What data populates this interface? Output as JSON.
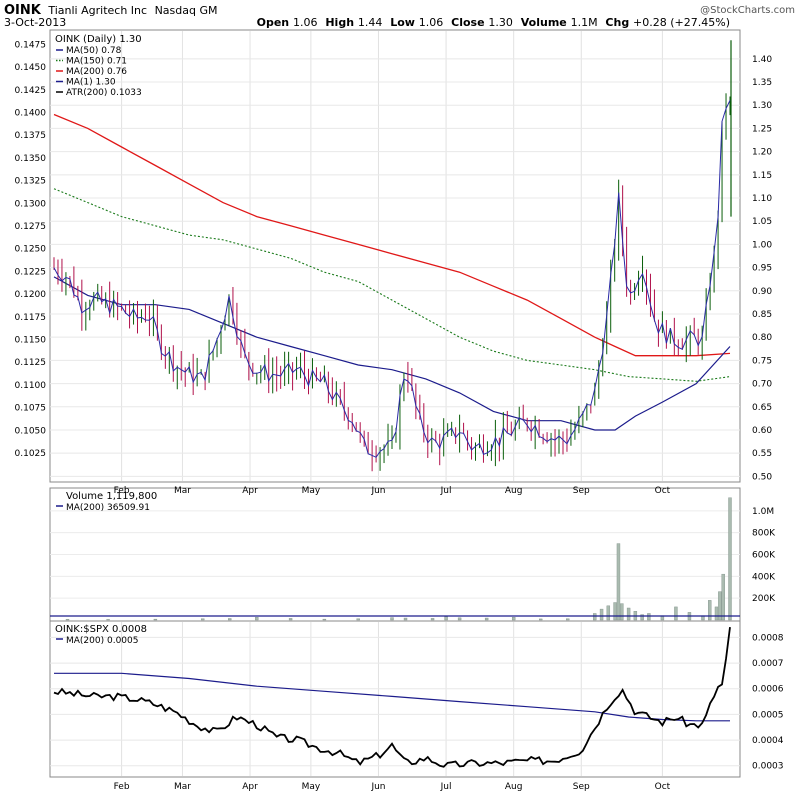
{
  "header": {
    "symbol": "OINK",
    "company": "Tianli Agritech Inc",
    "exchange": "Nasdaq GM",
    "date": "3-Oct-2013",
    "copyright": "@StockCharts.com",
    "open_label": "Open",
    "open": "1.06",
    "high_label": "High",
    "high": "1.44",
    "low_label": "Low",
    "low": "1.06",
    "close_label": "Close",
    "close": "1.30",
    "volume_label": "Volume",
    "volume": "1.1M",
    "chg_label": "Chg",
    "chg": "+0.28 (+27.45%)"
  },
  "colors": {
    "up": "#0a5e0a",
    "down": "#b0104a",
    "bar": "#2a2aa6",
    "ma50": "#1c1c8c",
    "ma150": "#1a7a1a",
    "ma200": "#e01818",
    "volume": "#aabbb0",
    "rs": "#000000"
  },
  "chart_data": [
    {
      "type": "line",
      "panel": "price",
      "title": "OINK (Daily) 1.30",
      "legend": [
        {
          "label": "MA(50) 0.78",
          "color": "#1c1c8c",
          "style": "solid"
        },
        {
          "label": "MA(150) 0.71",
          "color": "#1a7a1a",
          "style": "dotted"
        },
        {
          "label": "MA(200) 0.76",
          "color": "#e01818",
          "style": "solid"
        },
        {
          "label": "MA(1) 1.30",
          "color": "#1c1c8c",
          "style": "solid"
        },
        {
          "label": "ATR(200) 0.1033",
          "color": "#000000",
          "style": "solid"
        }
      ],
      "legend_position": "top-left",
      "grid": true,
      "x_ticks": [
        "Feb",
        "Mar",
        "Apr",
        "May",
        "Jun",
        "Jul",
        "Aug",
        "Sep",
        "Oct"
      ],
      "y_right_ticks": [
        "0.50",
        "0.55",
        "0.60",
        "0.65",
        "0.70",
        "0.75",
        "0.80",
        "0.85",
        "0.90",
        "0.95",
        "1.00",
        "1.05",
        "1.10",
        "1.15",
        "1.20",
        "1.25",
        "1.30",
        "1.35",
        "1.40"
      ],
      "y_right_range": [
        0.49,
        1.46
      ],
      "y_left_ticks": [
        "0.1025",
        "0.1050",
        "0.1075",
        "0.1100",
        "0.1125",
        "0.1150",
        "0.1175",
        "0.1200",
        "0.1225",
        "0.1250",
        "0.1275",
        "0.1300",
        "0.1325",
        "0.1350",
        "0.1375",
        "0.1400",
        "0.1425",
        "0.1450",
        "0.1475"
      ],
      "ma200": [
        [
          0,
          1.28
        ],
        [
          0.05,
          1.25
        ],
        [
          0.1,
          1.21
        ],
        [
          0.15,
          1.17
        ],
        [
          0.2,
          1.13
        ],
        [
          0.25,
          1.09
        ],
        [
          0.3,
          1.06
        ],
        [
          0.35,
          1.04
        ],
        [
          0.4,
          1.02
        ],
        [
          0.45,
          1.0
        ],
        [
          0.5,
          0.98
        ],
        [
          0.55,
          0.96
        ],
        [
          0.6,
          0.94
        ],
        [
          0.65,
          0.91
        ],
        [
          0.7,
          0.88
        ],
        [
          0.75,
          0.84
        ],
        [
          0.8,
          0.8
        ],
        [
          0.83,
          0.78
        ],
        [
          0.86,
          0.76
        ],
        [
          0.9,
          0.76
        ],
        [
          0.95,
          0.76
        ],
        [
          1,
          0.765
        ]
      ],
      "ma150": [
        [
          0,
          1.12
        ],
        [
          0.05,
          1.09
        ],
        [
          0.1,
          1.06
        ],
        [
          0.15,
          1.04
        ],
        [
          0.2,
          1.02
        ],
        [
          0.25,
          1.01
        ],
        [
          0.3,
          0.99
        ],
        [
          0.35,
          0.97
        ],
        [
          0.4,
          0.94
        ],
        [
          0.45,
          0.92
        ],
        [
          0.5,
          0.88
        ],
        [
          0.55,
          0.84
        ],
        [
          0.6,
          0.8
        ],
        [
          0.65,
          0.77
        ],
        [
          0.7,
          0.75
        ],
        [
          0.75,
          0.74
        ],
        [
          0.8,
          0.73
        ],
        [
          0.85,
          0.715
        ],
        [
          0.9,
          0.71
        ],
        [
          0.95,
          0.705
        ],
        [
          1,
          0.715
        ]
      ],
      "ma50": [
        [
          0,
          0.93
        ],
        [
          0.05,
          0.89
        ],
        [
          0.1,
          0.87
        ],
        [
          0.15,
          0.87
        ],
        [
          0.2,
          0.86
        ],
        [
          0.25,
          0.83
        ],
        [
          0.3,
          0.8
        ],
        [
          0.35,
          0.78
        ],
        [
          0.4,
          0.76
        ],
        [
          0.45,
          0.74
        ],
        [
          0.5,
          0.73
        ],
        [
          0.55,
          0.71
        ],
        [
          0.6,
          0.68
        ],
        [
          0.65,
          0.64
        ],
        [
          0.7,
          0.62
        ],
        [
          0.75,
          0.62
        ],
        [
          0.8,
          0.6
        ],
        [
          0.83,
          0.6
        ],
        [
          0.86,
          0.63
        ],
        [
          0.9,
          0.66
        ],
        [
          0.95,
          0.7
        ],
        [
          1,
          0.78
        ]
      ],
      "close": [
        [
          0,
          0.95
        ],
        [
          0.02,
          0.93
        ],
        [
          0.04,
          0.87
        ],
        [
          0.06,
          0.88
        ],
        [
          0.08,
          0.87
        ],
        [
          0.1,
          0.86
        ],
        [
          0.12,
          0.84
        ],
        [
          0.14,
          0.85
        ],
        [
          0.16,
          0.78
        ],
        [
          0.18,
          0.74
        ],
        [
          0.2,
          0.72
        ],
        [
          0.22,
          0.71
        ],
        [
          0.24,
          0.79
        ],
        [
          0.26,
          0.89
        ],
        [
          0.28,
          0.76
        ],
        [
          0.3,
          0.73
        ],
        [
          0.32,
          0.72
        ],
        [
          0.34,
          0.72
        ],
        [
          0.36,
          0.73
        ],
        [
          0.38,
          0.71
        ],
        [
          0.4,
          0.7
        ],
        [
          0.42,
          0.66
        ],
        [
          0.44,
          0.63
        ],
        [
          0.46,
          0.56
        ],
        [
          0.48,
          0.56
        ],
        [
          0.5,
          0.56
        ],
        [
          0.52,
          0.74
        ],
        [
          0.54,
          0.62
        ],
        [
          0.56,
          0.57
        ],
        [
          0.58,
          0.58
        ],
        [
          0.6,
          0.6
        ],
        [
          0.62,
          0.56
        ],
        [
          0.64,
          0.57
        ],
        [
          0.66,
          0.58
        ],
        [
          0.68,
          0.6
        ],
        [
          0.7,
          0.62
        ],
        [
          0.72,
          0.6
        ],
        [
          0.74,
          0.58
        ],
        [
          0.76,
          0.58
        ],
        [
          0.78,
          0.62
        ],
        [
          0.8,
          0.68
        ],
        [
          0.82,
          0.86
        ],
        [
          0.835,
          1.1
        ],
        [
          0.85,
          0.88
        ],
        [
          0.87,
          0.96
        ],
        [
          0.89,
          0.83
        ],
        [
          0.91,
          0.8
        ],
        [
          0.93,
          0.79
        ],
        [
          0.95,
          0.8
        ],
        [
          0.96,
          0.79
        ],
        [
          0.97,
          0.92
        ],
        [
          0.98,
          1.0
        ],
        [
          0.99,
          1.3
        ],
        [
          1,
          1.3
        ]
      ]
    },
    {
      "type": "bar",
      "panel": "volume",
      "title": "Volume 1,119,800",
      "legend": [
        {
          "label": "MA(200) 36509.91",
          "color": "#1c1c8c",
          "style": "solid"
        }
      ],
      "y_ticks": [
        "200K",
        "400K",
        "600K",
        "800K",
        "1.0M"
      ],
      "ylim": [
        0,
        1200000
      ],
      "spikes": [
        [
          0.02,
          6000
        ],
        [
          0.08,
          5000
        ],
        [
          0.15,
          8000
        ],
        [
          0.22,
          12000
        ],
        [
          0.26,
          14000
        ],
        [
          0.3,
          25000
        ],
        [
          0.35,
          15000
        ],
        [
          0.4,
          8000
        ],
        [
          0.45,
          12000
        ],
        [
          0.5,
          22000
        ],
        [
          0.52,
          18000
        ],
        [
          0.56,
          15000
        ],
        [
          0.58,
          30000
        ],
        [
          0.6,
          20000
        ],
        [
          0.64,
          18000
        ],
        [
          0.68,
          25000
        ],
        [
          0.72,
          10000
        ],
        [
          0.76,
          12000
        ],
        [
          0.8,
          60000
        ],
        [
          0.81,
          100000
        ],
        [
          0.82,
          130000
        ],
        [
          0.83,
          160000
        ],
        [
          0.835,
          700000
        ],
        [
          0.84,
          150000
        ],
        [
          0.85,
          110000
        ],
        [
          0.86,
          80000
        ],
        [
          0.87,
          50000
        ],
        [
          0.88,
          60000
        ],
        [
          0.9,
          40000
        ],
        [
          0.92,
          120000
        ],
        [
          0.94,
          70000
        ],
        [
          0.96,
          40000
        ],
        [
          0.97,
          180000
        ],
        [
          0.98,
          120000
        ],
        [
          0.985,
          260000
        ],
        [
          0.99,
          420000
        ],
        [
          1,
          1119800
        ]
      ],
      "ma200": 36509.91
    },
    {
      "type": "line",
      "panel": "relative-strength",
      "title": "OINK:$SPX 0.0008",
      "legend": [
        {
          "label": "MA(200) 0.0005",
          "color": "#1c1c8c",
          "style": "solid"
        }
      ],
      "y_ticks": [
        "0.0003",
        "0.0004",
        "0.0005",
        "0.0006",
        "0.0007",
        "0.0008"
      ],
      "ylim": [
        0.00026,
        0.00086
      ],
      "ratio": [
        [
          0,
          0.00059
        ],
        [
          0.03,
          0.00058
        ],
        [
          0.06,
          0.00057
        ],
        [
          0.09,
          0.00057
        ],
        [
          0.12,
          0.00056
        ],
        [
          0.15,
          0.00054
        ],
        [
          0.18,
          0.00051
        ],
        [
          0.21,
          0.00046
        ],
        [
          0.24,
          0.00043
        ],
        [
          0.27,
          0.00049
        ],
        [
          0.3,
          0.00046
        ],
        [
          0.33,
          0.00041
        ],
        [
          0.36,
          0.0004
        ],
        [
          0.39,
          0.00037
        ],
        [
          0.42,
          0.00035
        ],
        [
          0.45,
          0.00031
        ],
        [
          0.48,
          0.00034
        ],
        [
          0.5,
          0.00038
        ],
        [
          0.52,
          0.00031
        ],
        [
          0.55,
          0.00033
        ],
        [
          0.58,
          0.0003
        ],
        [
          0.62,
          0.00031
        ],
        [
          0.66,
          0.00031
        ],
        [
          0.7,
          0.00032
        ],
        [
          0.74,
          0.00032
        ],
        [
          0.78,
          0.00036
        ],
        [
          0.8,
          0.00045
        ],
        [
          0.82,
          0.00054
        ],
        [
          0.84,
          0.0006
        ],
        [
          0.86,
          0.00051
        ],
        [
          0.88,
          0.00049
        ],
        [
          0.9,
          0.00047
        ],
        [
          0.92,
          0.00049
        ],
        [
          0.94,
          0.00046
        ],
        [
          0.96,
          0.00046
        ],
        [
          0.98,
          0.0006
        ],
        [
          0.99,
          0.00062
        ],
        [
          1,
          0.00084
        ]
      ],
      "ma200": [
        [
          0,
          0.00066
        ],
        [
          0.1,
          0.00066
        ],
        [
          0.2,
          0.00064
        ],
        [
          0.3,
          0.00061
        ],
        [
          0.4,
          0.00059
        ],
        [
          0.5,
          0.00057
        ],
        [
          0.6,
          0.00055
        ],
        [
          0.7,
          0.00053
        ],
        [
          0.8,
          0.00051
        ],
        [
          0.85,
          0.00049
        ],
        [
          0.9,
          0.00048
        ],
        [
          0.95,
          0.000475
        ],
        [
          1,
          0.000475
        ]
      ]
    }
  ]
}
